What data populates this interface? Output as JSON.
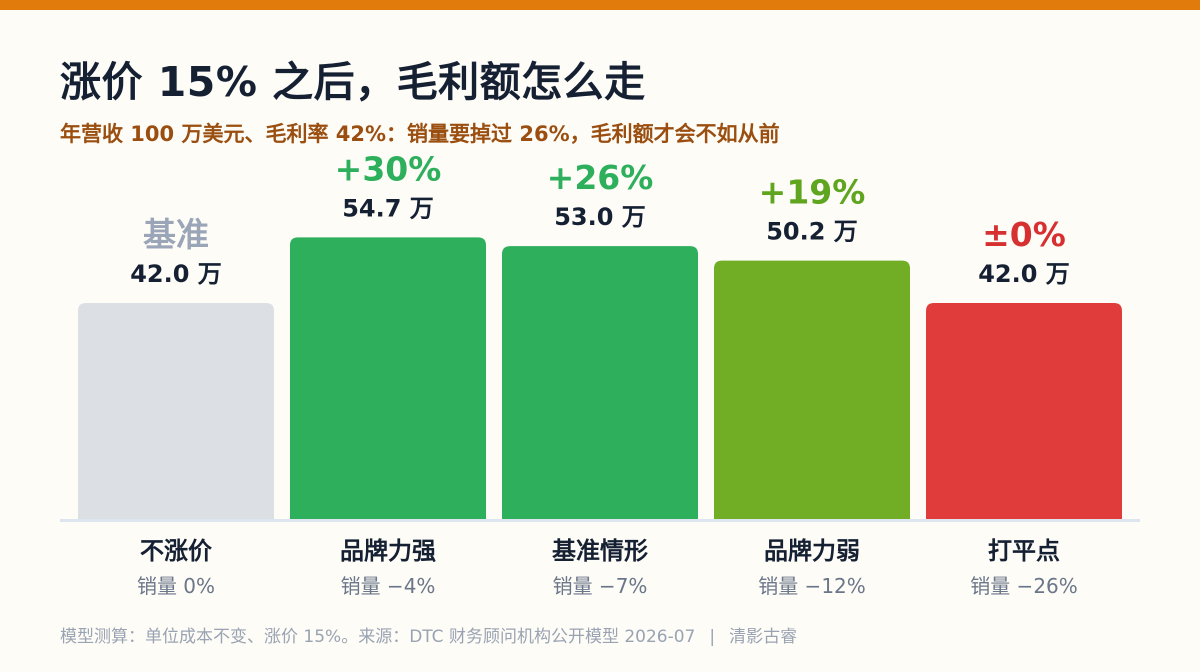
{
  "colors": {
    "top_bar": "#e07b0c",
    "subtitle": "#9a4e10",
    "baseline_bar": "#dcdfe4",
    "baseline_delta": "#9aa5b8",
    "green": "#2eaf5c",
    "lime": "#72ad26",
    "lime_text": "#5fa51f",
    "red": "#e03c3c",
    "red_text": "#d63030",
    "axis": "#dde6ee",
    "label_dark": "#152033",
    "sublabel": "#6b7689"
  },
  "header": {
    "title": "涨价 15% 之后，毛利额怎么走",
    "subtitle": "年营收 100 万美元、毛利率 42%：销量要掉过 26%，毛利额才会不如从前"
  },
  "chart_data": {
    "type": "bar",
    "title": "涨价 15% 之后，毛利额怎么走",
    "subtitle": "年营收 100 万美元、毛利率 42%：销量要掉过 26%，毛利额才会不如从前",
    "xlabel": "",
    "ylabel": "",
    "unit": "万",
    "ylim": [
      0,
      60
    ],
    "grid": false,
    "categories": [
      "不涨价",
      "品牌力强",
      "基准情形",
      "品牌力弱",
      "打平点"
    ],
    "sublabels": [
      "销量 0%",
      "销量 −4%",
      "销量 −7%",
      "销量 −12%",
      "销量 −26%"
    ],
    "values": [
      42.0,
      54.7,
      53.0,
      50.2,
      42.0
    ],
    "value_labels": [
      "42.0 万",
      "54.7 万",
      "53.0 万",
      "50.2 万",
      "42.0 万"
    ],
    "delta_labels": [
      "基准",
      "+30%",
      "+26%",
      "+19%",
      "±0%"
    ],
    "bar_colors": [
      "#dcdfe4",
      "#2eaf5c",
      "#2eaf5c",
      "#72ad26",
      "#e03c3c"
    ],
    "delta_colors": [
      "#9aa5b8",
      "#2eaf5c",
      "#2eaf5c",
      "#5fa51f",
      "#d63030"
    ]
  },
  "footer": {
    "note": "模型测算：单位成本不变、涨价 15%。来源：DTC 财务顾问机构公开模型 2026-07",
    "separator": "|",
    "brand": "清影古睿"
  }
}
